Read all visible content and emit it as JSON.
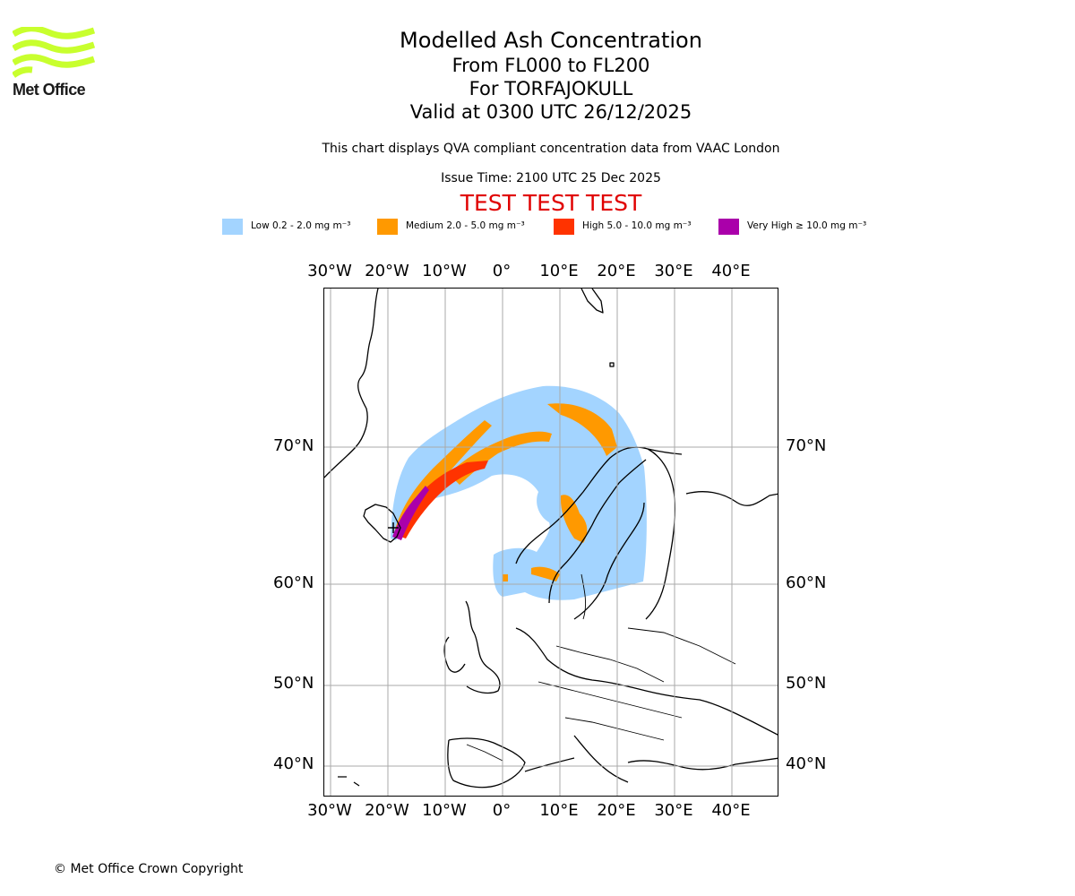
{
  "logo": {
    "text": "Met Office",
    "icon": "met-office-wave-logo",
    "color": "#c8ff2e"
  },
  "title": {
    "line1": "Modelled Ash Concentration",
    "line2": "From FL000 to FL200",
    "line3": "For TORFAJOKULL",
    "line4": "Valid at 0300 UTC 26/12/2025"
  },
  "subtitle": "This chart displays QVA compliant concentration data from VAAC London",
  "issue_time": "Issue Time: 2100 UTC 25 Dec 2025",
  "test_banner": "TEST TEST TEST",
  "legend": [
    {
      "name": "Low",
      "label": "Low 0.2 - 2.0 mg m⁻³",
      "color": "#a3d4ff"
    },
    {
      "name": "Medium",
      "label": "Medium 2.0 - 5.0 mg m⁻³",
      "color": "#ff9900"
    },
    {
      "name": "High",
      "label": "High 5.0 - 10.0 mg m⁻³",
      "color": "#ff3300"
    },
    {
      "name": "Very High",
      "label": "Very High ≥ 10.0 mg m⁻³",
      "color": "#aa00aa"
    }
  ],
  "map": {
    "lon_labels": [
      "30°W",
      "20°W",
      "10°W",
      "0°",
      "10°E",
      "20°E",
      "30°E",
      "40°E"
    ],
    "lat_labels": [
      "70°N",
      "60°N",
      "50°N",
      "40°N"
    ],
    "volcano": "TORFAJOKULL",
    "gridline_color": "#aaaaaa"
  },
  "copyright": "© Met Office Crown Copyright"
}
